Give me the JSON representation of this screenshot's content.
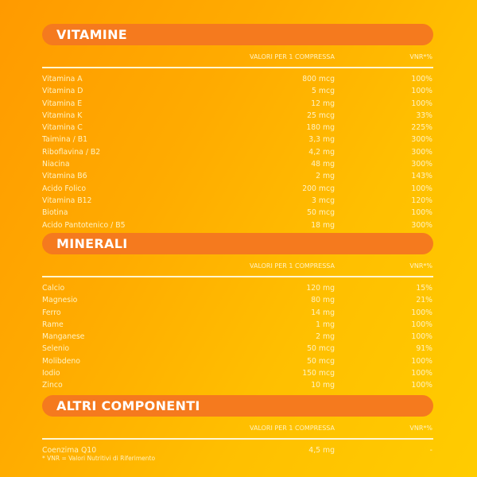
{
  "header": {
    "value_col": "VALORI PER 1 COMPRESSA",
    "vnr_col": "VNR*%"
  },
  "sections": [
    {
      "title": "VITAMINE",
      "rows": [
        [
          "Vitamina A",
          "800 mcg",
          "100%"
        ],
        [
          "Vitamina D",
          "5 mcg",
          "100%"
        ],
        [
          "Vitamina E",
          "12 mg",
          "100%"
        ],
        [
          "Vitamina K",
          "25 mcg",
          "33%"
        ],
        [
          "Vitamina C",
          "180 mg",
          "225%"
        ],
        [
          "Taimina / B1",
          "3,3 mg",
          "300%"
        ],
        [
          "Riboflavina / B2",
          "4,2 mg",
          "300%"
        ],
        [
          "Niacina",
          "48 mg",
          "300%"
        ],
        [
          "Vitamina B6",
          "2 mg",
          "143%"
        ],
        [
          "Acido Folico",
          "200 mcg",
          "100%"
        ],
        [
          "Vitamina B12",
          "3 mcg",
          "120%"
        ],
        [
          "Biotina",
          "50 mcg",
          "100%"
        ],
        [
          "Acido Pantotenico / B5",
          "18 mg",
          "300%"
        ]
      ]
    },
    {
      "title": "MINERALI",
      "rows": [
        [
          "Calcio",
          "120 mg",
          "15%"
        ],
        [
          "Magnesio",
          "80 mg",
          "21%"
        ],
        [
          "Ferro",
          "14 mg",
          "100%"
        ],
        [
          "Rame",
          "1 mg",
          "100%"
        ],
        [
          "Manganese",
          "2 mg",
          "100%"
        ],
        [
          "Selenio",
          "50 mcg",
          "91%"
        ],
        [
          "Molibdeno",
          "50 mcg",
          "100%"
        ],
        [
          "Iodio",
          "150 mcg",
          "100%"
        ],
        [
          "Zinco",
          "10 mg",
          "100%"
        ]
      ]
    },
    {
      "title": "ALTRI COMPONENTI",
      "rows": [
        [
          "Coenzima Q10",
          "4,5 mg",
          "-"
        ]
      ]
    }
  ],
  "footnote": "* VNR = Valori Nutritivi di Riferimento",
  "colors": {
    "bar": "#f57a1e",
    "text": "#fff3c4",
    "bg_start": "#ff9a00",
    "bg_end": "#ffcc00"
  }
}
